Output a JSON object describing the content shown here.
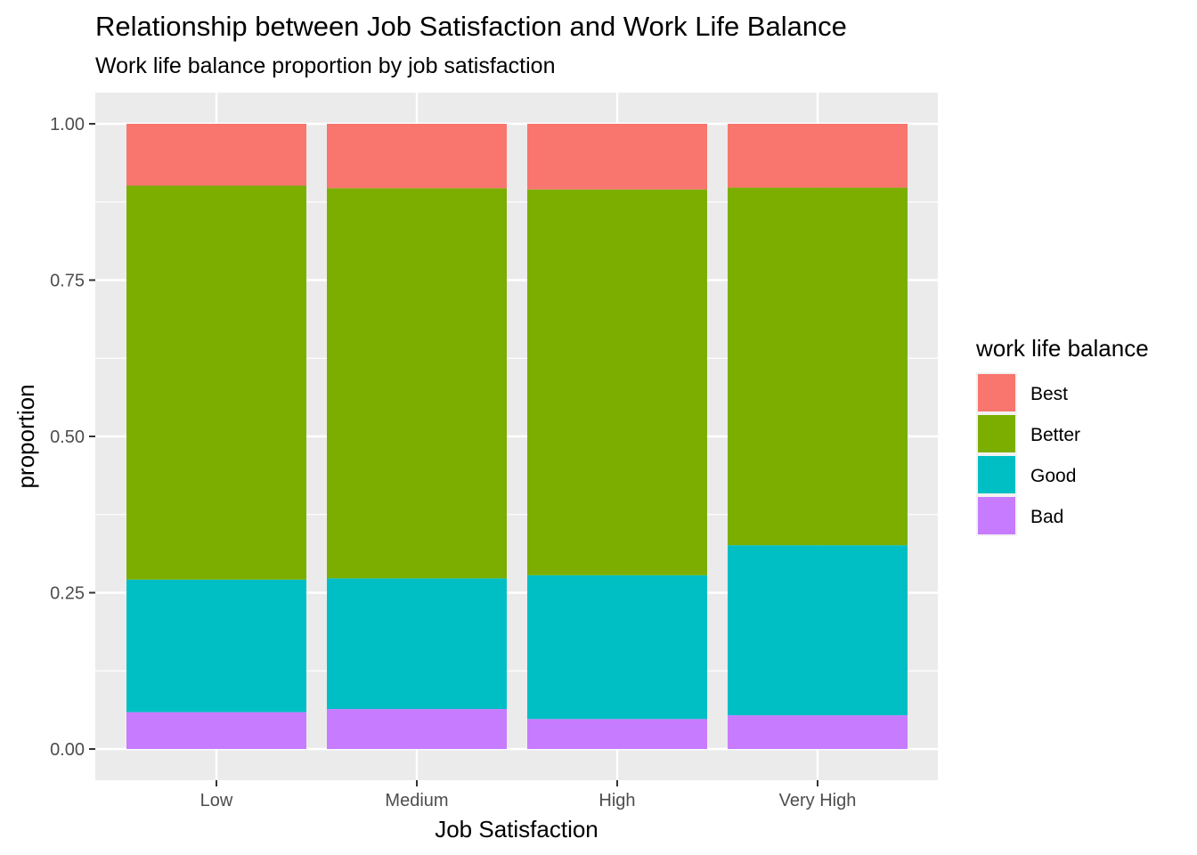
{
  "chart_data": {
    "type": "bar",
    "stacked": "proportion",
    "title": "Relationship between Job Satisfaction and Work Life Balance",
    "subtitle": "Work life balance proportion by job satisfaction",
    "xlabel": "Job Satisfaction",
    "ylabel": "proportion",
    "ylim": [
      0,
      1
    ],
    "yticks": [
      "0.00",
      "0.25",
      "0.50",
      "0.75",
      "1.00"
    ],
    "ytick_values": [
      0,
      0.25,
      0.5,
      0.75,
      1.0
    ],
    "categories": [
      "Low",
      "Medium",
      "High",
      "Very High"
    ],
    "grid": true,
    "legend_title": "work life balance",
    "legend_position": "right",
    "series": [
      {
        "name": "Bad",
        "color": "#C77CFF",
        "values": [
          0.059,
          0.064,
          0.048,
          0.054
        ]
      },
      {
        "name": "Good",
        "color": "#00BFC4",
        "values": [
          0.212,
          0.209,
          0.23,
          0.272
        ]
      },
      {
        "name": "Better",
        "color": "#7CAE00",
        "values": [
          0.63,
          0.624,
          0.617,
          0.572
        ]
      },
      {
        "name": "Best",
        "color": "#F8766D",
        "values": [
          0.099,
          0.103,
          0.105,
          0.102
        ]
      }
    ],
    "legend_order": [
      "Best",
      "Better",
      "Good",
      "Bad"
    ]
  }
}
